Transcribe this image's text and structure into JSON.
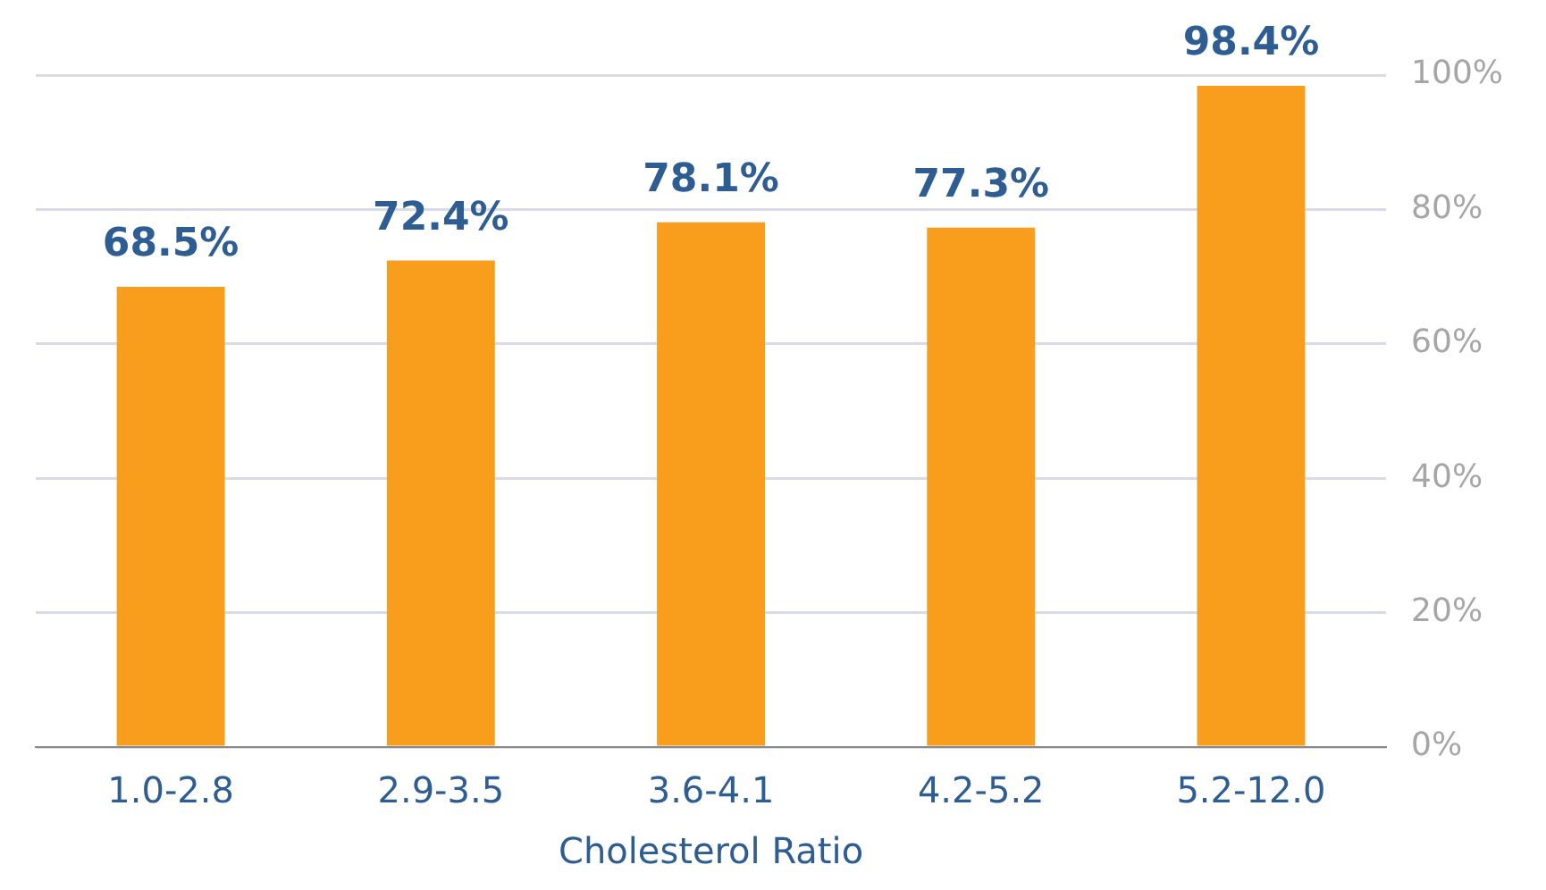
{
  "chart_data": {
    "type": "bar",
    "xlabel": "Cholesterol Ratio",
    "categories": [
      "1.0-2.8",
      "2.9-3.5",
      "3.6-4.1",
      "4.2-5.2",
      "5.2-12.0"
    ],
    "values": [
      68.5,
      72.4,
      78.1,
      77.3,
      98.4
    ],
    "value_labels": [
      "68.5%",
      "72.4%",
      "78.1%",
      "77.3%",
      "98.4%"
    ],
    "color": "#f99d1c",
    "ylim": [
      0,
      100
    ],
    "yticks": [
      {
        "value": 0,
        "label": "0%"
      },
      {
        "value": 20,
        "label": "20%"
      },
      {
        "value": 40,
        "label": "40%"
      },
      {
        "value": 60,
        "label": "60%"
      },
      {
        "value": 80,
        "label": "80%"
      },
      {
        "value": 100,
        "label": "100%"
      }
    ],
    "grid": "y",
    "legend": false
  }
}
